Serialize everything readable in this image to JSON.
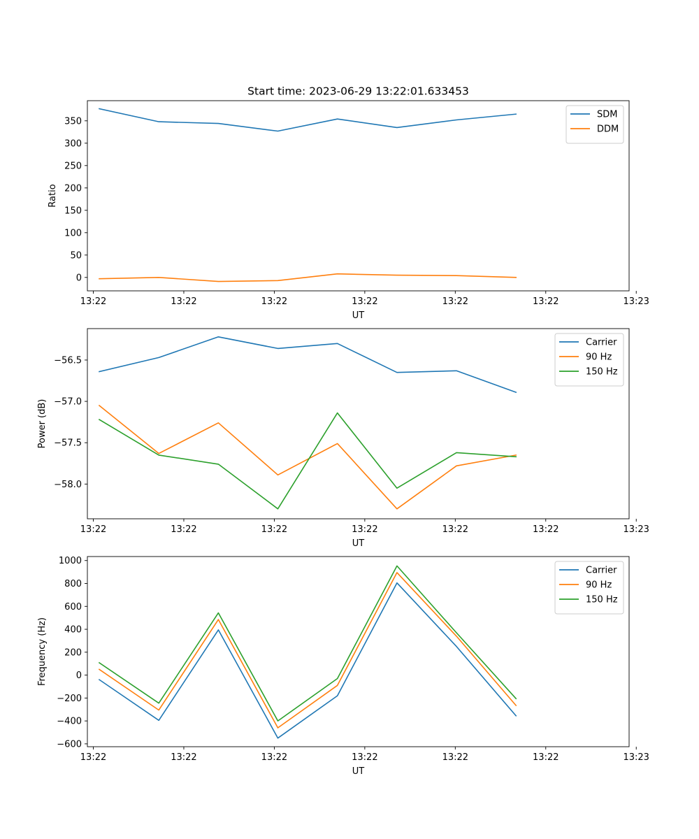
{
  "figure_title": "Start time: 2023-06-29 13:22:01.633453",
  "chart_data": [
    {
      "type": "line",
      "title": "Start time: 2023-06-29 13:22:01.633453",
      "xlabel": "UT",
      "ylabel": "Ratio",
      "x_tick_labels": [
        "13:22",
        "13:22",
        "13:22",
        "13:22",
        "13:22",
        "13:22",
        "13:23"
      ],
      "x": [
        1,
        2,
        3,
        4,
        5,
        6,
        7,
        8
      ],
      "xlim": [
        0.8,
        9.9
      ],
      "ylim": [
        -30,
        395
      ],
      "y_ticks": [
        0,
        50,
        100,
        150,
        200,
        250,
        300,
        350
      ],
      "y_tick_labels": [
        "0",
        "50",
        "100",
        "150",
        "200",
        "250",
        "300",
        "350"
      ],
      "grid": false,
      "legend_position": "top-right",
      "series": [
        {
          "name": "SDM",
          "color": "#1f77b4",
          "values": [
            377,
            348,
            344,
            327,
            354,
            335,
            352,
            365
          ]
        },
        {
          "name": "DDM",
          "color": "#ff7f0e",
          "values": [
            -3,
            0,
            -9,
            -7,
            8,
            5,
            4,
            0
          ]
        }
      ]
    },
    {
      "type": "line",
      "title": "",
      "xlabel": "UT",
      "ylabel": "Power (dB)",
      "x_tick_labels": [
        "13:22",
        "13:22",
        "13:22",
        "13:22",
        "13:22",
        "13:22",
        "13:23"
      ],
      "x": [
        1,
        2,
        3,
        4,
        5,
        6,
        7,
        8
      ],
      "xlim": [
        0.8,
        9.9
      ],
      "ylim": [
        -58.42,
        -56.12
      ],
      "y_ticks": [
        -58.0,
        -57.5,
        -57.0,
        -56.5
      ],
      "y_tick_labels": [
        "−58.0",
        "−57.5",
        "−57.0",
        "−56.5"
      ],
      "grid": false,
      "legend_position": "top-right",
      "series": [
        {
          "name": "Carrier",
          "color": "#1f77b4",
          "values": [
            -56.64,
            -56.47,
            -56.22,
            -56.36,
            -56.3,
            -56.65,
            -56.63,
            -56.89
          ]
        },
        {
          "name": "90 Hz",
          "color": "#ff7f0e",
          "values": [
            -57.05,
            -57.63,
            -57.26,
            -57.89,
            -57.51,
            -58.3,
            -57.78,
            -57.65
          ]
        },
        {
          "name": "150 Hz",
          "color": "#2ca02c",
          "values": [
            -57.22,
            -57.65,
            -57.76,
            -58.3,
            -57.14,
            -58.05,
            -57.62,
            -57.67
          ]
        }
      ]
    },
    {
      "type": "line",
      "title": "",
      "xlabel": "UT",
      "ylabel": "Frequency (Hz)",
      "x_tick_labels": [
        "13:22",
        "13:22",
        "13:22",
        "13:22",
        "13:22",
        "13:22",
        "13:23"
      ],
      "x": [
        1,
        2,
        3,
        4,
        5,
        6,
        7,
        8
      ],
      "xlim": [
        0.8,
        9.9
      ],
      "ylim": [
        -625,
        1035
      ],
      "y_ticks": [
        -600,
        -400,
        -200,
        0,
        200,
        400,
        600,
        800,
        1000
      ],
      "y_tick_labels": [
        "−600",
        "−400",
        "−200",
        "0",
        "200",
        "400",
        "600",
        "800",
        "1000"
      ],
      "grid": false,
      "legend_position": "top-right",
      "series": [
        {
          "name": "Carrier",
          "color": "#1f77b4",
          "values": [
            -40,
            -395,
            395,
            -550,
            -180,
            805,
            250,
            -355
          ]
        },
        {
          "name": "90 Hz",
          "color": "#ff7f0e",
          "values": [
            50,
            -305,
            485,
            -460,
            -90,
            895,
            340,
            -265
          ]
        },
        {
          "name": "150 Hz",
          "color": "#2ca02c",
          "values": [
            108,
            -245,
            543,
            -400,
            -30,
            953,
            370,
            -205
          ]
        }
      ]
    }
  ]
}
